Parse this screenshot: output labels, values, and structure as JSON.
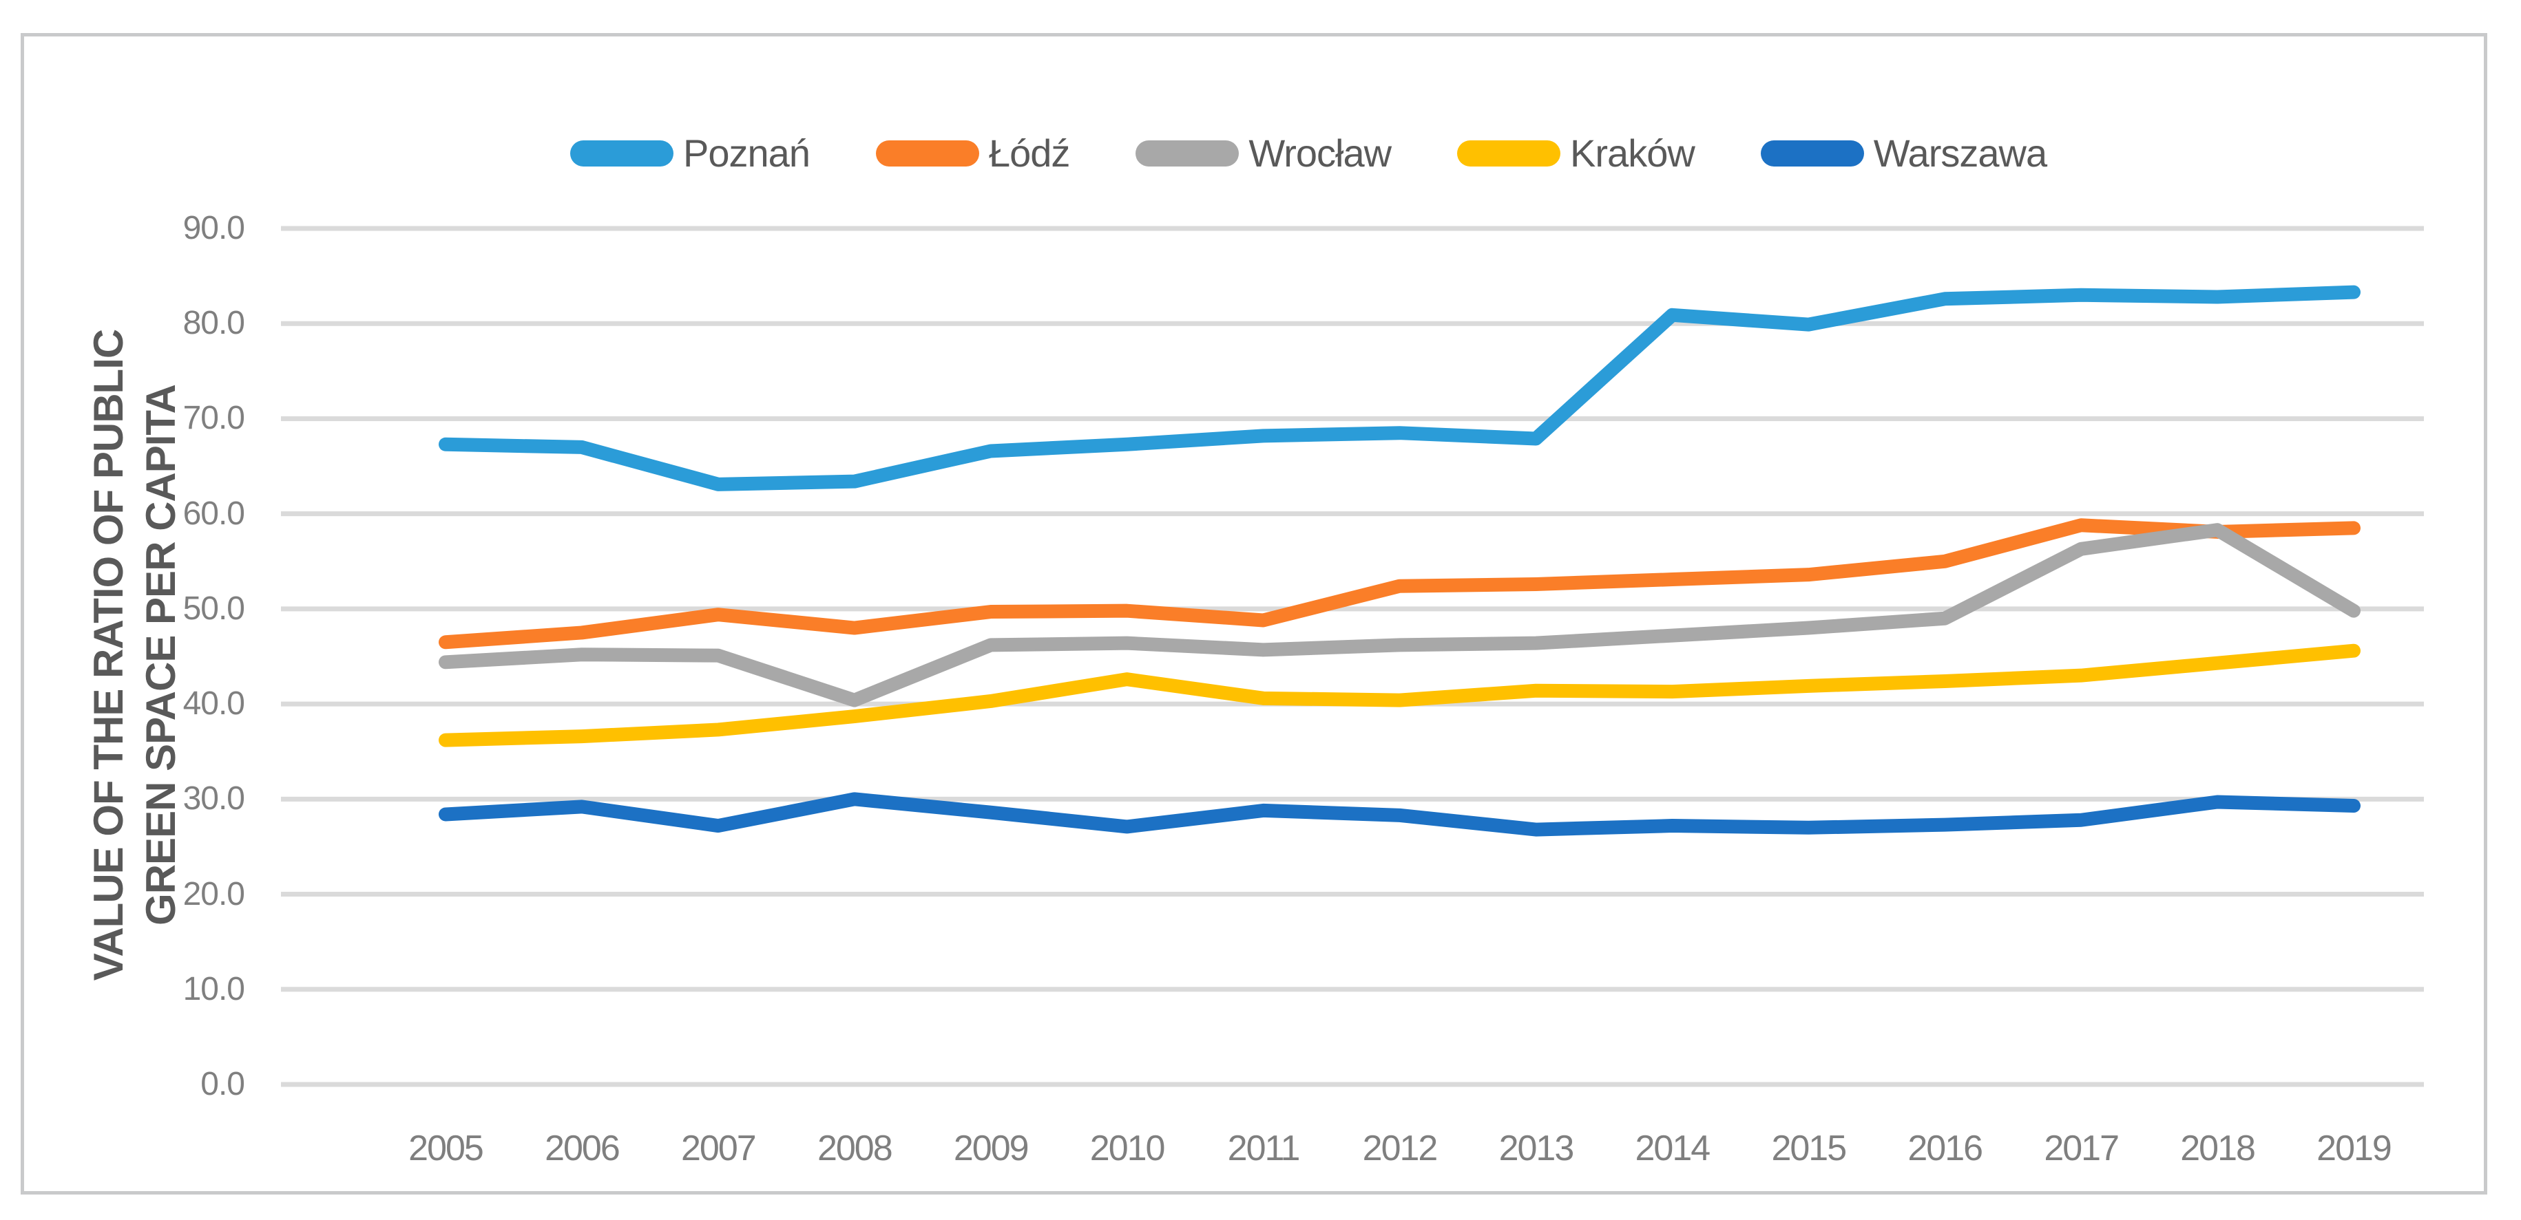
{
  "chart_data": {
    "type": "line",
    "title": "",
    "ylabel_lines": [
      "VALUE OF THE RATIO OF PUBLIC",
      "GREEN SPACE PER CAPITA"
    ],
    "xlabel": "",
    "x": [
      2005,
      2006,
      2007,
      2008,
      2009,
      2010,
      2011,
      2012,
      2013,
      2014,
      2015,
      2016,
      2017,
      2018,
      2019
    ],
    "series": [
      {
        "name": "Poznań",
        "color": "#2b9cd8",
        "values": [
          67.3,
          67.0,
          63.1,
          63.4,
          66.6,
          67.3,
          68.2,
          68.5,
          67.9,
          80.9,
          79.9,
          82.6,
          83.0,
          82.8,
          83.3
        ]
      },
      {
        "name": "Łódź",
        "color": "#fa7e28",
        "values": [
          46.5,
          47.5,
          49.4,
          48.0,
          49.7,
          49.8,
          48.8,
          52.4,
          52.6,
          53.1,
          53.6,
          55.0,
          58.8,
          58.1,
          58.5
        ]
      },
      {
        "name": "Wrocław",
        "color": "#a8a8a8",
        "values": [
          44.4,
          45.2,
          45.1,
          40.4,
          46.2,
          46.4,
          45.7,
          46.2,
          46.4,
          47.2,
          48.0,
          49.0,
          56.3,
          58.3,
          49.8
        ]
      },
      {
        "name": "Kraków",
        "color": "#ffc000",
        "values": [
          36.2,
          36.6,
          37.3,
          38.7,
          40.3,
          42.6,
          40.6,
          40.4,
          41.4,
          41.3,
          41.9,
          42.4,
          43.0,
          44.3,
          45.6
        ]
      },
      {
        "name": "Warszawa",
        "color": "#1c71c4",
        "values": [
          28.4,
          29.2,
          27.2,
          30.0,
          28.6,
          27.1,
          28.8,
          28.3,
          26.8,
          27.2,
          27.0,
          27.3,
          27.8,
          29.7,
          29.3
        ]
      }
    ],
    "ylim": [
      0,
      90
    ],
    "ytick_step": 10,
    "ytick_labels": [
      "0.0",
      "10.0",
      "20.0",
      "30.0",
      "40.0",
      "50.0",
      "60.0",
      "70.0",
      "80.0",
      "90.0"
    ],
    "grid": "horizontal",
    "legend_position": "top"
  },
  "colors": {
    "background": "#ffffff",
    "frame_border": "#c9cacb",
    "gridline": "#dadada",
    "tick_label": "#7f7f7f",
    "axis_title": "#595959",
    "legend_text": "#595959"
  }
}
